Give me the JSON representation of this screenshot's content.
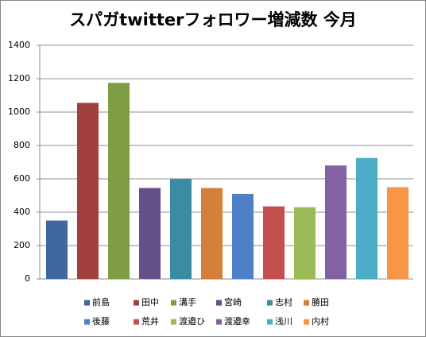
{
  "chart_data": {
    "type": "bar",
    "title": "スパガtwitterフォロワー増減数 今月",
    "categories": [
      "前島",
      "田中",
      "溝手",
      "宮崎",
      "志村",
      "勝田",
      "後藤",
      "荒井",
      "渡邉ひ",
      "渡邉幸",
      "浅川",
      "内村"
    ],
    "values": [
      350,
      1055,
      1175,
      545,
      600,
      545,
      510,
      435,
      430,
      680,
      725,
      550
    ],
    "colors": [
      "#3f67a0",
      "#a2403d",
      "#7f9d43",
      "#65508a",
      "#3a8ca4",
      "#d2803a",
      "#4f7fc6",
      "#c44f4e",
      "#9bbb58",
      "#8163a4",
      "#4bacc6",
      "#f79646"
    ],
    "ylim": [
      0,
      1400
    ],
    "yticks": [
      0,
      200,
      400,
      600,
      800,
      1000,
      1200,
      1400
    ],
    "grid": true
  }
}
